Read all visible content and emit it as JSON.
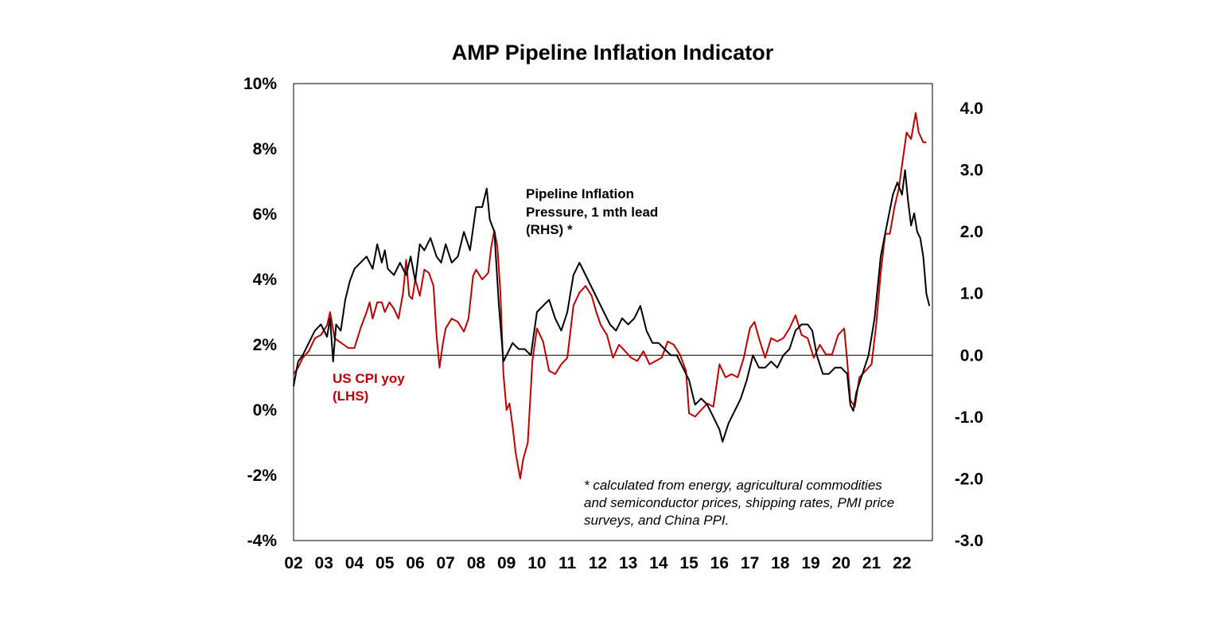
{
  "chart_data": {
    "type": "line",
    "title": "AMP Pipeline Inflation Indicator",
    "x_tick_labels": [
      "02",
      "03",
      "04",
      "05",
      "06",
      "07",
      "08",
      "09",
      "10",
      "11",
      "12",
      "13",
      "14",
      "15",
      "16",
      "17",
      "18",
      "19",
      "20",
      "21",
      "22"
    ],
    "x_tick_years": [
      2002,
      2003,
      2004,
      2005,
      2006,
      2007,
      2008,
      2009,
      2010,
      2011,
      2012,
      2013,
      2014,
      2015,
      2016,
      2017,
      2018,
      2019,
      2020,
      2021,
      2022
    ],
    "x_range": [
      2002.0,
      2023.0
    ],
    "left_axis": {
      "label": "US CPI yoy (LHS)",
      "range": [
        -4,
        10
      ],
      "ticks": [
        10,
        8,
        6,
        4,
        2,
        0,
        -2,
        -4
      ],
      "tick_labels": [
        "10%",
        "8%",
        "6%",
        "4%",
        "2%",
        "0%",
        "-2%",
        "-4%"
      ]
    },
    "right_axis": {
      "label": "Pipeline Inflation Pressure, 1 mth lead (RHS) *",
      "range": [
        -3.0,
        4.4
      ],
      "ticks": [
        4.0,
        3.0,
        2.0,
        1.0,
        0.0,
        -1.0,
        -2.0,
        -3.0
      ],
      "tick_labels": [
        "4.0",
        "3.0",
        "2.0",
        "1.0",
        "0.0",
        "-1.0",
        "-2.0",
        "-3.0"
      ],
      "zero_line": 0.0
    },
    "series": [
      {
        "name": "US CPI yoy (LHS)",
        "axis": "left",
        "color": "#c00000",
        "x": [
          2002.0,
          2002.15,
          2002.3,
          2002.5,
          2002.7,
          2002.9,
          2003.1,
          2003.2,
          2003.35,
          2003.5,
          2003.65,
          2003.8,
          2004.0,
          2004.2,
          2004.4,
          2004.5,
          2004.6,
          2004.75,
          2004.9,
          2005.0,
          2005.15,
          2005.3,
          2005.45,
          2005.6,
          2005.7,
          2005.8,
          2005.9,
          2006.0,
          2006.15,
          2006.3,
          2006.45,
          2006.6,
          2006.7,
          2006.8,
          2006.9,
          2007.0,
          2007.2,
          2007.4,
          2007.6,
          2007.75,
          2007.9,
          2008.0,
          2008.2,
          2008.4,
          2008.5,
          2008.6,
          2008.7,
          2008.8,
          2008.9,
          2009.0,
          2009.1,
          2009.2,
          2009.3,
          2009.45,
          2009.55,
          2009.7,
          2009.85,
          2010.0,
          2010.2,
          2010.4,
          2010.6,
          2010.8,
          2011.0,
          2011.2,
          2011.4,
          2011.6,
          2011.8,
          2011.95,
          2012.1,
          2012.3,
          2012.5,
          2012.7,
          2012.9,
          2013.1,
          2013.3,
          2013.5,
          2013.7,
          2013.9,
          2014.1,
          2014.3,
          2014.5,
          2014.7,
          2014.9,
          2015.0,
          2015.2,
          2015.4,
          2015.6,
          2015.8,
          2016.0,
          2016.2,
          2016.4,
          2016.6,
          2016.8,
          2017.0,
          2017.15,
          2017.3,
          2017.5,
          2017.7,
          2017.9,
          2018.1,
          2018.3,
          2018.5,
          2018.7,
          2018.9,
          2019.1,
          2019.3,
          2019.5,
          2019.7,
          2019.9,
          2020.1,
          2020.2,
          2020.3,
          2020.45,
          2020.6,
          2020.8,
          2021.0,
          2021.15,
          2021.3,
          2021.45,
          2021.6,
          2021.75,
          2021.9,
          2022.0,
          2022.15,
          2022.3,
          2022.45,
          2022.55,
          2022.7,
          2022.8
        ],
        "y": [
          1.1,
          1.3,
          1.6,
          1.8,
          2.2,
          2.3,
          2.6,
          3.0,
          2.2,
          2.1,
          2.0,
          1.9,
          1.9,
          2.5,
          3.0,
          3.3,
          2.8,
          3.3,
          3.3,
          3.0,
          3.3,
          3.1,
          2.8,
          3.6,
          4.6,
          3.5,
          3.4,
          4.0,
          3.5,
          4.3,
          4.2,
          3.8,
          2.3,
          1.3,
          2.0,
          2.5,
          2.8,
          2.7,
          2.4,
          2.8,
          4.1,
          4.3,
          4.0,
          4.2,
          5.0,
          5.5,
          5.0,
          3.6,
          1.1,
          0.0,
          0.2,
          -0.5,
          -1.3,
          -2.1,
          -1.5,
          -1.0,
          1.5,
          2.5,
          2.1,
          1.2,
          1.1,
          1.4,
          1.6,
          3.2,
          3.6,
          3.8,
          3.5,
          3.0,
          2.6,
          2.3,
          1.6,
          2.0,
          1.8,
          1.6,
          1.5,
          1.8,
          1.4,
          1.5,
          1.6,
          2.1,
          2.0,
          1.7,
          1.2,
          -0.1,
          -0.2,
          0.0,
          0.2,
          0.1,
          1.4,
          1.0,
          1.1,
          1.0,
          1.6,
          2.5,
          2.7,
          2.2,
          1.6,
          2.2,
          2.1,
          2.2,
          2.5,
          2.9,
          2.3,
          2.2,
          1.6,
          2.0,
          1.7,
          1.7,
          2.3,
          2.5,
          1.5,
          0.3,
          0.1,
          1.0,
          1.2,
          1.4,
          2.6,
          4.2,
          5.4,
          5.4,
          6.2,
          6.8,
          7.5,
          8.5,
          8.3,
          9.1,
          8.5,
          8.2,
          8.2
        ]
      },
      {
        "name": "Pipeline Inflation Pressure, 1 mth lead (RHS) *",
        "axis": "right",
        "color": "#000000",
        "x": [
          2002.0,
          2002.15,
          2002.3,
          2002.5,
          2002.7,
          2002.9,
          2003.1,
          2003.2,
          2003.3,
          2003.4,
          2003.55,
          2003.7,
          2003.85,
          2004.0,
          2004.2,
          2004.4,
          2004.6,
          2004.75,
          2004.9,
          2005.0,
          2005.1,
          2005.3,
          2005.5,
          2005.7,
          2005.85,
          2006.0,
          2006.15,
          2006.3,
          2006.5,
          2006.7,
          2006.85,
          2007.0,
          2007.2,
          2007.4,
          2007.6,
          2007.8,
          2008.0,
          2008.2,
          2008.35,
          2008.45,
          2008.6,
          2008.75,
          2008.9,
          2009.0,
          2009.2,
          2009.4,
          2009.6,
          2009.8,
          2010.0,
          2010.2,
          2010.4,
          2010.6,
          2010.8,
          2011.0,
          2011.2,
          2011.4,
          2011.6,
          2011.8,
          2012.0,
          2012.2,
          2012.4,
          2012.6,
          2012.8,
          2013.0,
          2013.2,
          2013.4,
          2013.6,
          2013.8,
          2014.0,
          2014.2,
          2014.4,
          2014.6,
          2014.8,
          2015.0,
          2015.2,
          2015.4,
          2015.6,
          2015.8,
          2016.0,
          2016.1,
          2016.3,
          2016.5,
          2016.7,
          2016.9,
          2017.1,
          2017.3,
          2017.5,
          2017.7,
          2017.9,
          2018.1,
          2018.3,
          2018.5,
          2018.7,
          2018.9,
          2019.05,
          2019.2,
          2019.4,
          2019.6,
          2019.8,
          2020.0,
          2020.2,
          2020.3,
          2020.4,
          2020.5,
          2020.7,
          2020.9,
          2021.1,
          2021.3,
          2021.5,
          2021.7,
          2021.85,
          2022.0,
          2022.1,
          2022.2,
          2022.3,
          2022.4,
          2022.5,
          2022.6,
          2022.7,
          2022.8,
          2022.9
        ],
        "y": [
          -0.5,
          -0.1,
          0.0,
          0.2,
          0.4,
          0.5,
          0.3,
          0.6,
          -0.1,
          0.5,
          0.4,
          0.9,
          1.2,
          1.4,
          1.5,
          1.6,
          1.4,
          1.8,
          1.5,
          1.7,
          1.4,
          1.3,
          1.5,
          1.3,
          1.6,
          1.2,
          1.8,
          1.7,
          1.9,
          1.6,
          1.5,
          1.8,
          1.5,
          1.6,
          2.0,
          1.7,
          2.4,
          2.4,
          2.7,
          2.2,
          2.0,
          0.8,
          -0.1,
          0.0,
          0.2,
          0.1,
          0.1,
          0.0,
          0.7,
          0.8,
          0.9,
          0.6,
          0.4,
          0.7,
          1.3,
          1.5,
          1.3,
          1.1,
          0.9,
          0.7,
          0.5,
          0.4,
          0.6,
          0.5,
          0.6,
          0.8,
          0.4,
          0.2,
          0.2,
          0.1,
          0.0,
          0.0,
          -0.2,
          -0.4,
          -0.8,
          -0.7,
          -0.8,
          -1.0,
          -1.2,
          -1.4,
          -1.1,
          -0.9,
          -0.7,
          -0.4,
          0.0,
          -0.2,
          -0.2,
          -0.1,
          -0.2,
          0.0,
          0.1,
          0.4,
          0.5,
          0.5,
          0.4,
          0.0,
          -0.3,
          -0.3,
          -0.2,
          -0.2,
          -0.3,
          -0.8,
          -0.9,
          -0.6,
          -0.3,
          0.0,
          0.6,
          1.6,
          2.1,
          2.6,
          2.8,
          2.6,
          3.0,
          2.5,
          2.1,
          2.3,
          2.0,
          1.9,
          1.6,
          1.0,
          0.8
        ]
      }
    ],
    "annotations": {
      "cpi_label_lines": [
        "US CPI yoy",
        "(LHS)"
      ],
      "pipeline_label_lines": [
        "Pipeline Inflation",
        "Pressure, 1 mth lead",
        "(RHS) *"
      ],
      "footnote_lines": [
        "* calculated from energy, agricultural commodities",
        "and semiconductor prices, shipping rates, PMI price",
        "surveys, and China PPI."
      ]
    }
  }
}
